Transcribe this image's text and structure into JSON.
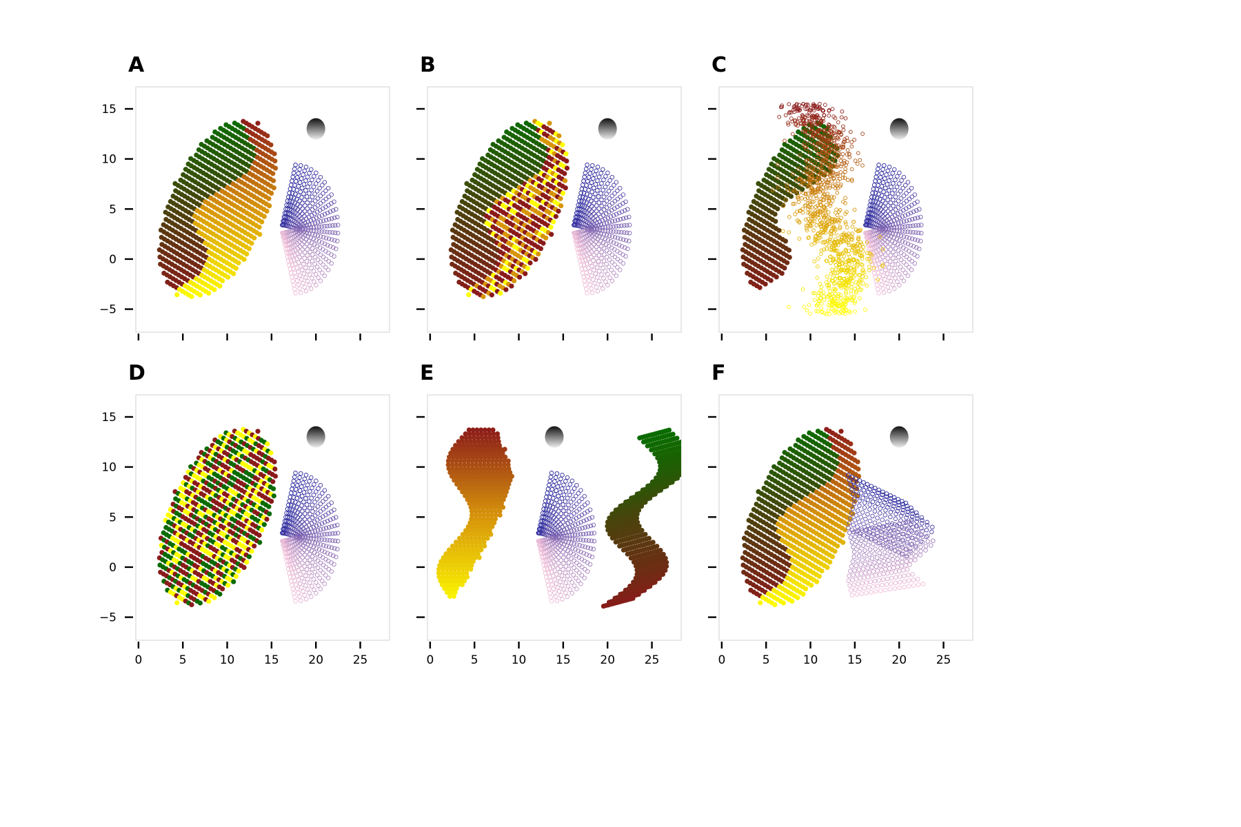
{
  "chart_data": {
    "type": "scatter",
    "layout": "2x3 grid of panels, shared axes",
    "xlim": [
      -0.3,
      28.3
    ],
    "ylim": [
      -7.3,
      17.2
    ],
    "xticks": [
      0,
      5,
      10,
      15,
      20,
      25
    ],
    "xtick_labels": [
      "0",
      "5",
      "10",
      "15",
      "20",
      "25"
    ],
    "yticks": [
      15,
      10,
      5,
      0,
      -5
    ],
    "ytick_labels": [
      "15",
      "10",
      "5",
      "0",
      "−5"
    ],
    "grid": false,
    "legend": "none",
    "colors": {
      "green": "#0b6b00",
      "red": "#8b1a1a",
      "yellow": "#ffff00",
      "orange": "#d7950a",
      "blue": "#23239b",
      "purple": "#7b62b1",
      "pink": "#f2bcd6",
      "sphere_dark": "#111111",
      "sphere_light": "#eeeeee",
      "frame": "#d9d9d9"
    },
    "panels": [
      {
        "label": "A",
        "variant": "original ellipse (green/yellow regions) + blue-pink fan + grey sphere",
        "ellipse": {
          "cx": 8.9,
          "cy": 5,
          "rx": 5.4,
          "ry": 9.7,
          "tilt_deg": -28
        },
        "fan": {
          "cx": 17.7,
          "cy": 3,
          "rx": 4.8,
          "ry": 6.4
        },
        "sphere": {
          "x": 20,
          "y": 13,
          "r": 1.05
        }
      },
      {
        "label": "B",
        "variant": "ellipse right half speckled with red/yellow noise",
        "ellipse": {
          "cx": 8.9,
          "cy": 5,
          "rx": 5.4,
          "ry": 9.7,
          "tilt_deg": -28
        },
        "fan": {
          "cx": 17.7,
          "cy": 3,
          "rx": 4.8,
          "ry": 6.4
        },
        "sphere": {
          "x": 20,
          "y": 13,
          "r": 1.05
        }
      },
      {
        "label": "C",
        "variant": "right half scattered outward (red at top, yellow at bottom)",
        "ellipse": {
          "cx": 8.9,
          "cy": 5,
          "rx": 5.4,
          "ry": 9.7,
          "tilt_deg": -28
        },
        "cloud": {
          "x_range": [
            6.5,
            17
          ],
          "y_range": [
            -6.2,
            16
          ]
        },
        "fan": {
          "cx": 17.7,
          "cy": 3,
          "rx": 4.8,
          "ry": 6.4
        },
        "sphere": {
          "x": 20,
          "y": 13,
          "r": 1.05
        }
      },
      {
        "label": "D",
        "variant": "whole ellipse speckled red/green/yellow",
        "ellipse": {
          "cx": 8.9,
          "cy": 5,
          "rx": 5.4,
          "ry": 9.7,
          "tilt_deg": -28
        },
        "fan": {
          "cx": 17.7,
          "cy": 3,
          "rx": 4.8,
          "ry": 6.4
        },
        "sphere": {
          "x": 20,
          "y": 13,
          "r": 1.05
        }
      },
      {
        "label": "E",
        "variant": "ellipse split: red/yellow part at left, green/red wavy band at right",
        "left_part": {
          "x_range": [
            1,
            9.5
          ],
          "y_range": [
            -3.5,
            14
          ]
        },
        "right_part": {
          "x_range": [
            18,
            27
          ],
          "y_range": [
            -4,
            13.5
          ]
        },
        "fan": {
          "cx": 13.7,
          "cy": 3,
          "rx": 4.8,
          "ry": 6.4
        },
        "sphere": {
          "x": 14,
          "y": 13,
          "r": 1.05
        }
      },
      {
        "label": "F",
        "variant": "original ellipse + folded (zig-zag) fan",
        "ellipse": {
          "cx": 8.9,
          "cy": 5,
          "rx": 5.4,
          "ry": 9.7,
          "tilt_deg": -28
        },
        "fan": {
          "x_range": [
            12.5,
            24
          ],
          "y_range": [
            -3,
            9.5
          ]
        },
        "sphere": {
          "x": 20,
          "y": 13,
          "r": 1.05
        }
      }
    ]
  }
}
